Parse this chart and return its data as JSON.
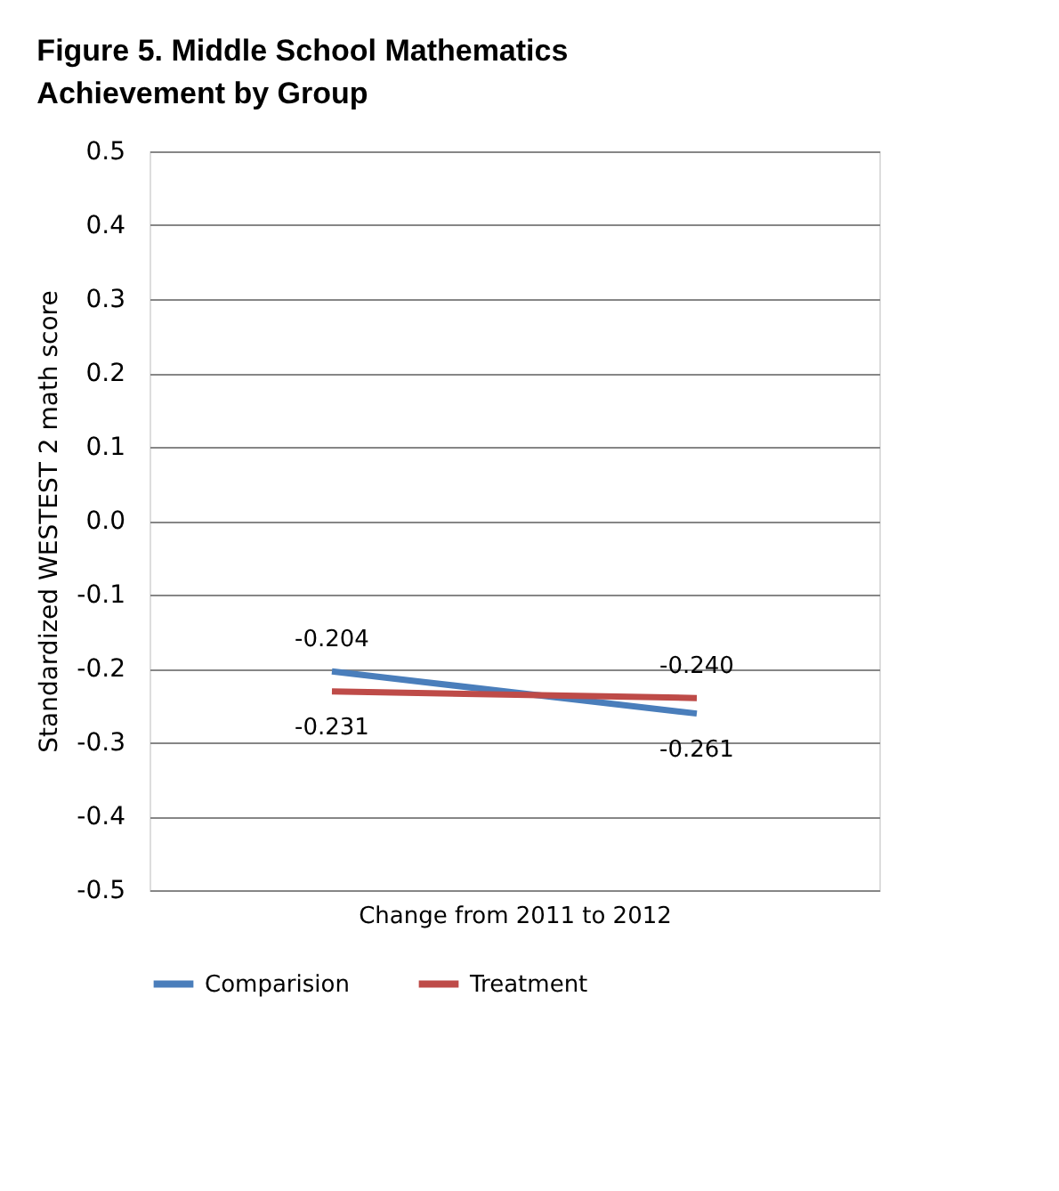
{
  "chart_data": {
    "type": "line",
    "title": "Figure 5.      Middle School Mathematics Achievement by Group",
    "xlabel": "Change from 2011 to 2012",
    "ylabel": "Standardized WESTEST 2 math score",
    "categories": [
      null,
      null
    ],
    "series": [
      {
        "name": "Comparision",
        "color": "#4a7ebb",
        "values": [
          -0.204,
          -0.261
        ],
        "value_labels": [
          "-0.204",
          "-0.261"
        ]
      },
      {
        "name": "Treatment",
        "color": "#be4b48",
        "values": [
          -0.231,
          -0.24
        ],
        "value_labels": [
          "-0.231",
          "-0.240"
        ]
      }
    ],
    "ylim": [
      -0.5,
      0.5
    ],
    "yticks": [
      -0.5,
      -0.4,
      -0.3,
      -0.2,
      -0.1,
      {
        "value": 0,
        "label": "0.0"
      },
      0.1,
      0.2,
      0.3,
      0.4,
      0.5
    ],
    "grid": "y",
    "legend": "bottom",
    "marker": "none",
    "line_style": "solid",
    "tick_labels": "y"
  }
}
